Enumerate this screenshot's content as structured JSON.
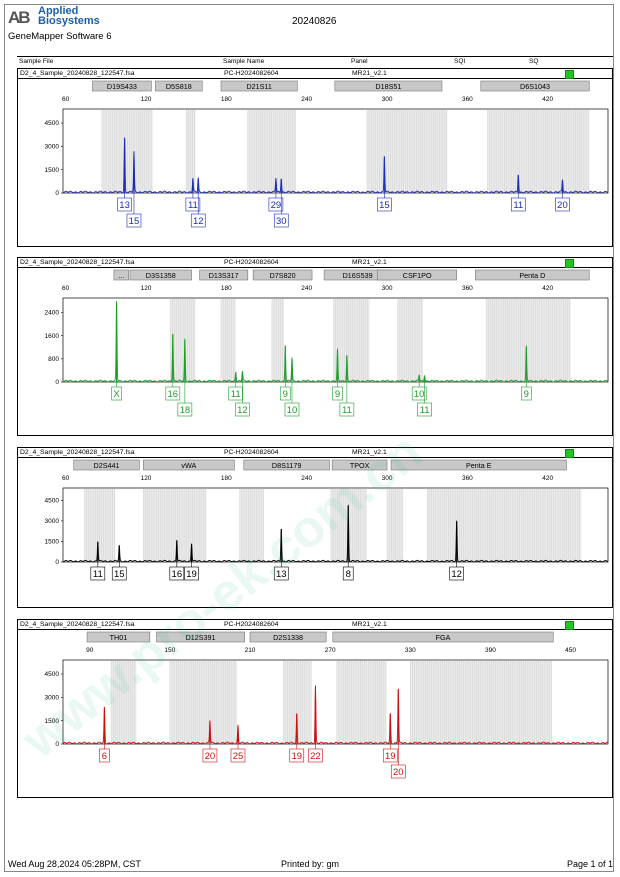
{
  "header": {
    "logo_mark": "AB",
    "logo_line1": "Applied",
    "logo_line2": "Biosystems",
    "software": "GeneMapper Software 6",
    "date": "20240826",
    "watermark": "www.pro-ek.com.cn",
    "columns": [
      "Sample File",
      "Sample Name",
      "Panel",
      "SQI",
      "SQ"
    ]
  },
  "panel_info": {
    "sample_file": "D2_4_Sample_20240828_122547.fsa",
    "sample_name": "PC-H2024082604",
    "panel": "MR21_v2.1"
  },
  "chart_data": [
    {
      "type": "line",
      "color": "#1a2db5",
      "x_ticks": [
        60,
        120,
        180,
        240,
        300,
        360,
        420
      ],
      "xlim": [
        58,
        465
      ],
      "y_ticks": [
        0,
        1500,
        3000,
        4500
      ],
      "ylim": [
        0,
        5400
      ],
      "loci": [
        {
          "label": "D19S433",
          "start": 80,
          "end": 124
        },
        {
          "label": "D5S818",
          "start": 127,
          "end": 162
        },
        {
          "label": "D21S11",
          "start": 176,
          "end": 233
        },
        {
          "label": "D18S51",
          "start": 261,
          "end": 341
        },
        {
          "label": "D6S1043",
          "start": 370,
          "end": 451
        }
      ],
      "bins": [
        [
          87,
          125
        ],
        [
          150,
          157
        ],
        [
          196,
          232
        ],
        [
          285,
          345
        ],
        [
          375,
          451
        ]
      ],
      "peaks": [
        {
          "x": 104,
          "h": 3500
        },
        {
          "x": 111,
          "h": 2600
        },
        {
          "x": 155,
          "h": 900
        },
        {
          "x": 159,
          "h": 900
        },
        {
          "x": 217,
          "h": 900
        },
        {
          "x": 221,
          "h": 900
        },
        {
          "x": 298,
          "h": 2300
        },
        {
          "x": 398,
          "h": 1150
        },
        {
          "x": 431,
          "h": 800
        }
      ],
      "alleles": [
        {
          "x": 104,
          "label": "13",
          "row": 1
        },
        {
          "x": 111,
          "label": "15",
          "row": 2
        },
        {
          "x": 155,
          "label": "11",
          "row": 1
        },
        {
          "x": 159,
          "label": "12",
          "row": 2
        },
        {
          "x": 217,
          "label": "29",
          "row": 1
        },
        {
          "x": 221,
          "label": "30",
          "row": 2
        },
        {
          "x": 298,
          "label": "15",
          "row": 1
        },
        {
          "x": 398,
          "label": "11",
          "row": 1
        },
        {
          "x": 431,
          "label": "20",
          "row": 1
        }
      ]
    },
    {
      "type": "line",
      "color": "#1d9e2a",
      "x_ticks": [
        60,
        120,
        180,
        240,
        300,
        360,
        420
      ],
      "xlim": [
        58,
        465
      ],
      "y_ticks": [
        0,
        800,
        1600,
        2400
      ],
      "ylim": [
        0,
        2900
      ],
      "loci": [
        {
          "label": "...",
          "start": 96,
          "end": 107
        },
        {
          "label": "D3S1358",
          "start": 108,
          "end": 154
        },
        {
          "label": "D13S317",
          "start": 160,
          "end": 196
        },
        {
          "label": "D7S820",
          "start": 200,
          "end": 244
        },
        {
          "label": "D16S539",
          "start": 253,
          "end": 303
        },
        {
          "label": "CSF1PO",
          "start": 293,
          "end": 352
        },
        {
          "label": "Penta D",
          "start": 366,
          "end": 451
        }
      ],
      "bins": [
        [
          138,
          157
        ],
        [
          176,
          187
        ],
        [
          214,
          223
        ],
        [
          260,
          287
        ],
        [
          308,
          327
        ],
        [
          374,
          437
        ]
      ],
      "peaks": [
        {
          "x": 98,
          "h": 2750
        },
        {
          "x": 140,
          "h": 1650
        },
        {
          "x": 149,
          "h": 1450
        },
        {
          "x": 187,
          "h": 330
        },
        {
          "x": 192,
          "h": 330
        },
        {
          "x": 224,
          "h": 1250
        },
        {
          "x": 229,
          "h": 800
        },
        {
          "x": 263,
          "h": 1100
        },
        {
          "x": 270,
          "h": 900
        },
        {
          "x": 324,
          "h": 220
        },
        {
          "x": 328,
          "h": 220
        },
        {
          "x": 404,
          "h": 1200
        }
      ],
      "alleles": [
        {
          "x": 98,
          "label": "X",
          "row": 1
        },
        {
          "x": 140,
          "label": "16",
          "row": 1
        },
        {
          "x": 149,
          "label": "18",
          "row": 2
        },
        {
          "x": 187,
          "label": "11",
          "row": 1
        },
        {
          "x": 192,
          "label": "12",
          "row": 2
        },
        {
          "x": 224,
          "label": "9",
          "row": 1
        },
        {
          "x": 229,
          "label": "10",
          "row": 2
        },
        {
          "x": 263,
          "label": "9",
          "row": 1
        },
        {
          "x": 270,
          "label": "11",
          "row": 2
        },
        {
          "x": 324,
          "label": "10",
          "row": 1
        },
        {
          "x": 328,
          "label": "11",
          "row": 2
        },
        {
          "x": 404,
          "label": "9",
          "row": 1
        }
      ]
    },
    {
      "type": "line",
      "color": "#000000",
      "x_ticks": [
        60,
        120,
        180,
        240,
        300,
        360,
        420
      ],
      "xlim": [
        58,
        465
      ],
      "y_ticks": [
        0,
        1500,
        3000,
        4500
      ],
      "ylim": [
        0,
        5400
      ],
      "loci": [
        {
          "label": "D2S441",
          "start": 66,
          "end": 115
        },
        {
          "label": "vWA",
          "start": 118,
          "end": 186
        },
        {
          "label": "D8S1179",
          "start": 193,
          "end": 257
        },
        {
          "label": "TPOX",
          "start": 259,
          "end": 300
        },
        {
          "label": "Penta E",
          "start": 303,
          "end": 434
        }
      ],
      "bins": [
        [
          74,
          97
        ],
        [
          118,
          165
        ],
        [
          190,
          208
        ],
        [
          258,
          285
        ],
        [
          300,
          312
        ],
        [
          330,
          445
        ]
      ],
      "peaks": [
        {
          "x": 84,
          "h": 1450
        },
        {
          "x": 100,
          "h": 1150
        },
        {
          "x": 143,
          "h": 1550
        },
        {
          "x": 154,
          "h": 1300
        },
        {
          "x": 221,
          "h": 2400
        },
        {
          "x": 271,
          "h": 4100
        },
        {
          "x": 352,
          "h": 2950
        }
      ],
      "alleles": [
        {
          "x": 84,
          "label": "11",
          "row": 1
        },
        {
          "x": 100,
          "label": "15",
          "row": 1
        },
        {
          "x": 143,
          "label": "16",
          "row": 1
        },
        {
          "x": 154,
          "label": "19",
          "row": 1
        },
        {
          "x": 221,
          "label": "13",
          "row": 1
        },
        {
          "x": 271,
          "label": "8",
          "row": 1
        },
        {
          "x": 352,
          "label": "12",
          "row": 1
        }
      ]
    },
    {
      "type": "line",
      "color": "#cc1111",
      "x_ticks": [
        90,
        150,
        210,
        270,
        330,
        390,
        450
      ],
      "xlim": [
        70,
        478
      ],
      "y_ticks": [
        0,
        1500,
        3000,
        4500
      ],
      "ylim": [
        0,
        5400
      ],
      "loci": [
        {
          "label": "TH01",
          "start": 88,
          "end": 135
        },
        {
          "label": "D12S391",
          "start": 140,
          "end": 206
        },
        {
          "label": "D2S1338",
          "start": 210,
          "end": 267
        },
        {
          "label": "FGA",
          "start": 272,
          "end": 437
        }
      ],
      "bins": [
        [
          106,
          125
        ],
        [
          150,
          200
        ],
        [
          235,
          256
        ],
        [
          275,
          312
        ],
        [
          330,
          436
        ]
      ],
      "peaks": [
        {
          "x": 101,
          "h": 2300
        },
        {
          "x": 180,
          "h": 1450
        },
        {
          "x": 201,
          "h": 1150
        },
        {
          "x": 245,
          "h": 1900
        },
        {
          "x": 259,
          "h": 3700
        },
        {
          "x": 315,
          "h": 1900
        },
        {
          "x": 321,
          "h": 3500
        }
      ],
      "alleles": [
        {
          "x": 101,
          "label": "6",
          "row": 1
        },
        {
          "x": 180,
          "label": "20",
          "row": 1
        },
        {
          "x": 201,
          "label": "25",
          "row": 1
        },
        {
          "x": 245,
          "label": "19",
          "row": 1
        },
        {
          "x": 259,
          "label": "22",
          "row": 1
        },
        {
          "x": 315,
          "label": "19",
          "row": 1
        },
        {
          "x": 321,
          "label": "20",
          "row": 2
        }
      ]
    }
  ],
  "footer": {
    "timestamp": "Wed Aug 28,2024 05:28PM, CST",
    "printed_by": "Printed by: gm",
    "page": "Page 1 of 1"
  }
}
